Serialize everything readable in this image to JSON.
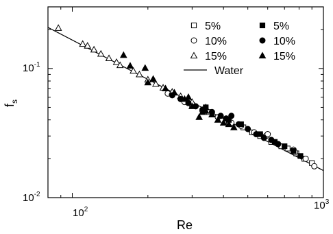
{
  "chart_data": {
    "type": "scatter",
    "xlabel": "Re",
    "ylabel": "f",
    "ylabel_sub": "s",
    "xscale": "log",
    "yscale": "log",
    "xlim": [
      80,
      1000
    ],
    "ylim": [
      0.01,
      0.3
    ],
    "x_ticks": [
      {
        "base": "10",
        "exp": "2",
        "value": 100
      },
      {
        "base": "10",
        "exp": "3",
        "value": 1000
      }
    ],
    "y_ticks": [
      {
        "base": "10",
        "exp": "-2",
        "value": 0.01
      },
      {
        "base": "10",
        "exp": "-1",
        "value": 0.1
      }
    ],
    "legend_position": "top-right",
    "series": [
      {
        "name": "5%",
        "marker": "square-open",
        "points": [
          [
            300,
            0.052
          ],
          [
            350,
            0.046
          ],
          [
            420,
            0.039
          ],
          [
            480,
            0.035
          ],
          [
            520,
            0.032
          ],
          [
            560,
            0.03
          ],
          [
            620,
            0.027
          ],
          [
            680,
            0.025
          ],
          [
            720,
            0.024
          ],
          [
            780,
            0.022
          ],
          [
            840,
            0.02
          ],
          [
            900,
            0.0185
          ]
        ]
      },
      {
        "name": "10%",
        "marker": "circle-open",
        "points": [
          [
            240,
            0.064
          ],
          [
            280,
            0.055
          ],
          [
            330,
            0.047
          ],
          [
            380,
            0.042
          ],
          [
            430,
            0.038
          ],
          [
            470,
            0.036
          ],
          [
            530,
            0.032
          ],
          [
            590,
            0.03
          ],
          [
            600,
            0.031
          ],
          [
            660,
            0.026
          ],
          [
            760,
            0.0235
          ],
          [
            770,
            0.0225
          ],
          [
            850,
            0.02
          ],
          [
            920,
            0.0175
          ]
        ]
      },
      {
        "name": "15%",
        "marker": "triangle-open",
        "points": [
          [
            88,
            0.206
          ],
          [
            110,
            0.155
          ],
          [
            115,
            0.15
          ],
          [
            122,
            0.14
          ],
          [
            130,
            0.13
          ],
          [
            140,
            0.12
          ],
          [
            150,
            0.112
          ],
          [
            155,
            0.106
          ],
          [
            175,
            0.096
          ],
          [
            185,
            0.09
          ],
          [
            200,
            0.082
          ],
          [
            215,
            0.076
          ],
          [
            230,
            0.071
          ],
          [
            250,
            0.066
          ],
          [
            270,
            0.061
          ],
          [
            300,
            0.055
          ],
          [
            340,
            0.05
          ]
        ]
      },
      {
        "name": "5%",
        "marker": "square-filled",
        "points": [
          [
            340,
            0.05
          ],
          [
            420,
            0.04
          ],
          [
            470,
            0.037
          ],
          [
            560,
            0.031
          ],
          [
            640,
            0.027
          ],
          [
            700,
            0.025
          ],
          [
            760,
            0.023
          ],
          [
            810,
            0.021
          ]
        ]
      },
      {
        "name": "10%",
        "marker": "circle-filled",
        "points": [
          [
            250,
            0.062
          ],
          [
            270,
            0.058
          ],
          [
            290,
            0.054
          ],
          [
            310,
            0.051
          ],
          [
            330,
            0.048
          ],
          [
            360,
            0.046
          ],
          [
            390,
            0.043
          ],
          [
            410,
            0.041
          ],
          [
            430,
            0.043
          ],
          [
            460,
            0.037
          ],
          [
            500,
            0.034
          ],
          [
            540,
            0.031
          ],
          [
            580,
            0.029
          ],
          [
            620,
            0.028
          ],
          [
            660,
            0.026
          ]
        ]
      },
      {
        "name": "15%",
        "marker": "triangle-filled",
        "points": [
          [
            160,
            0.127
          ],
          [
            170,
            0.105
          ],
          [
            195,
            0.101
          ],
          [
            200,
            0.078
          ],
          [
            210,
            0.083
          ],
          [
            235,
            0.07
          ],
          [
            255,
            0.065
          ],
          [
            280,
            0.058
          ],
          [
            290,
            0.06
          ],
          [
            300,
            0.051
          ],
          [
            320,
            0.042
          ],
          [
            330,
            0.046
          ],
          [
            340,
            0.047
          ],
          [
            360,
            0.044
          ],
          [
            380,
            0.04
          ],
          [
            400,
            0.038
          ],
          [
            420,
            0.037
          ],
          [
            440,
            0.035
          ]
        ]
      }
    ],
    "line": {
      "name": "Water",
      "points": [
        [
          80,
          0.208
        ],
        [
          1000,
          0.0162
        ]
      ]
    }
  }
}
